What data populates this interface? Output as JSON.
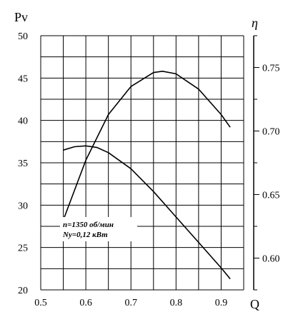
{
  "chart_data": {
    "type": "line",
    "xlabel": "Q",
    "ylabel": "Pv",
    "y2label": "η",
    "xlim": [
      0.5,
      0.95
    ],
    "ylim": [
      20,
      50
    ],
    "y2lim": [
      0.575,
      0.775
    ],
    "x_ticks": [
      0.5,
      0.6,
      0.7,
      0.8,
      0.9
    ],
    "x_tick_labels": [
      "0.5",
      "0.6",
      "0.7",
      "0.8",
      "0.9"
    ],
    "y_ticks": [
      20,
      25,
      30,
      35,
      40,
      45,
      50
    ],
    "y_tick_labels": [
      "20",
      "25",
      "30",
      "35",
      "40",
      "45",
      "50"
    ],
    "y2_ticks": [
      0.6,
      0.65,
      0.7,
      0.75
    ],
    "y2_tick_labels": [
      "0.60",
      "0.65",
      "0.70",
      "0.75"
    ],
    "grid": true,
    "annotation_lines": [
      "n=1350 об/мин",
      "Nу=0,12 кВт"
    ],
    "series": [
      {
        "axis": "left",
        "color": "#000000",
        "x": [
          0.55,
          0.575,
          0.6,
          0.625,
          0.65,
          0.7,
          0.75,
          0.8,
          0.85,
          0.9,
          0.92
        ],
        "y": [
          36.5,
          36.9,
          37.0,
          36.8,
          36.2,
          34.3,
          31.6,
          28.6,
          25.6,
          22.6,
          21.3
        ]
      },
      {
        "axis": "right",
        "color": "#000000",
        "x": [
          0.55,
          0.6,
          0.65,
          0.7,
          0.75,
          0.77,
          0.8,
          0.85,
          0.9,
          0.92
        ],
        "y": [
          0.63,
          0.677,
          0.713,
          0.735,
          0.746,
          0.747,
          0.745,
          0.733,
          0.713,
          0.703
        ]
      }
    ]
  }
}
